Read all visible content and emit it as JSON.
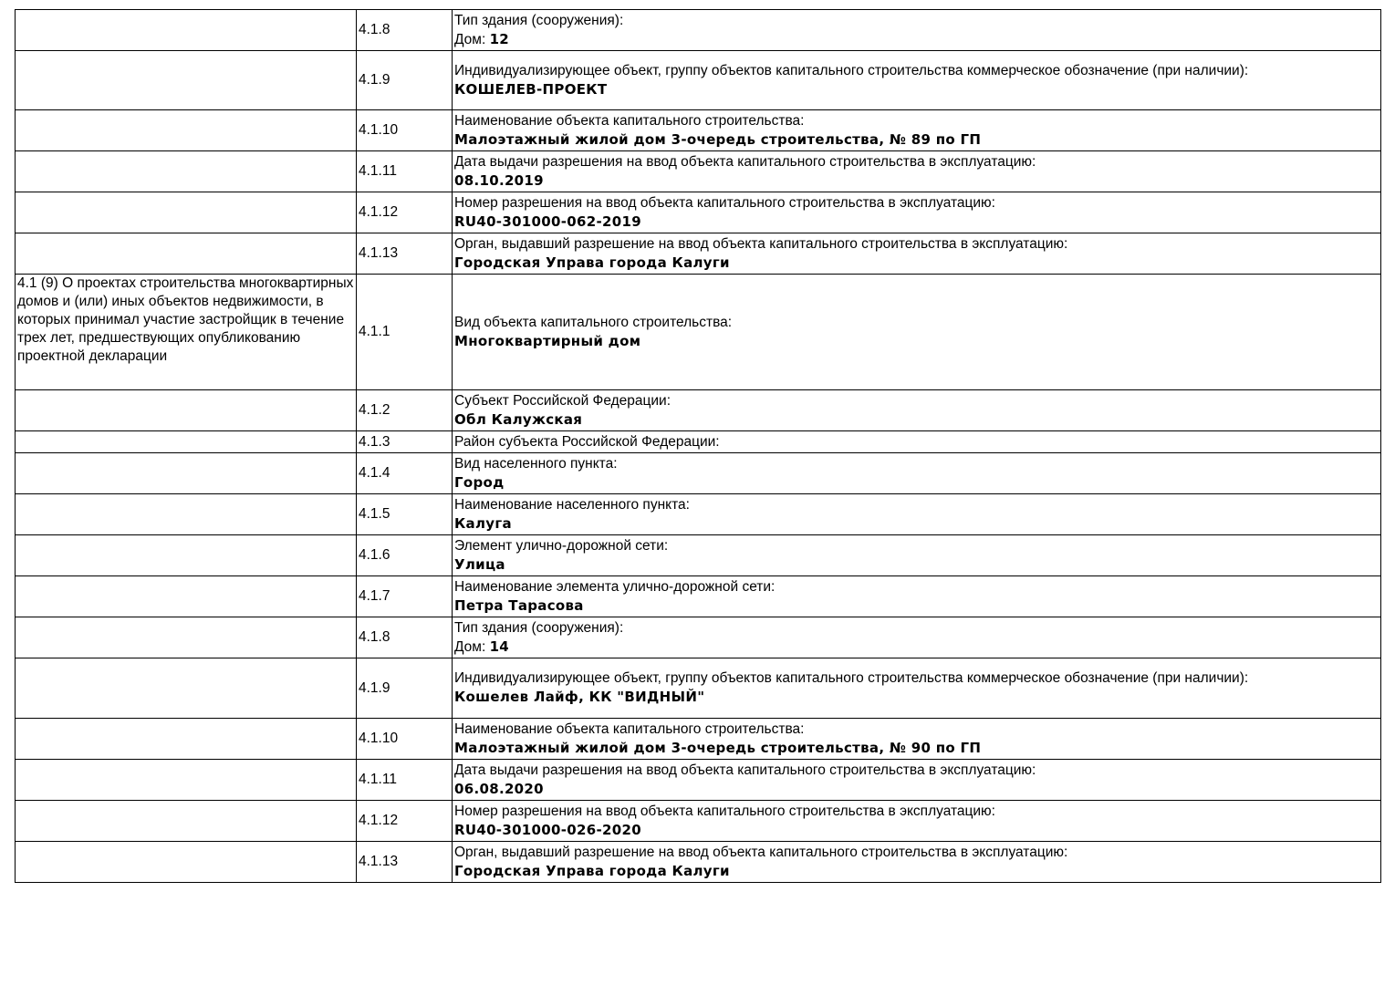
{
  "rows": [
    {
      "section": "",
      "num": "4.1.8",
      "label": "Тип здания (сооружения):",
      "value_prefix": "Дом: ",
      "value": "12"
    },
    {
      "section": "",
      "num": "4.1.9",
      "label": "Индивидуализирующее объект, группу объектов капитального строительства коммерческое обозначение (при наличии):",
      "value_prefix": "",
      "value": "КОШЕЛЕВ-ПРОЕКТ"
    },
    {
      "section": "",
      "num": "4.1.10",
      "label": "Наименование объекта капитального строительства:",
      "value_prefix": "",
      "value": "Малоэтажный жилой дом 3-очередь строительства, № 89 по ГП"
    },
    {
      "section": "",
      "num": "4.1.11",
      "label": "Дата выдачи разрешения на ввод объекта капитального строительства в эксплуатацию:",
      "value_prefix": "",
      "value": "08.10.2019"
    },
    {
      "section": "",
      "num": "4.1.12",
      "label": "Номер разрешения на ввод объекта капитального строительства в эксплуатацию:",
      "value_prefix": "",
      "value": "RU40-301000-062-2019"
    },
    {
      "section": "",
      "num": "4.1.13",
      "label": "Орган, выдавший разрешение на ввод объекта капитального строительства в эксплуатацию:",
      "value_prefix": "",
      "value": "Городская Управа города Калуги"
    },
    {
      "section": "4.1 (9) О проектах строительства многоквартирных домов и (или) иных объектов недвижимости, в которых принимал участие застройщик в течение трех лет, предшествующих опубликованию проектной декларации",
      "num": "4.1.1",
      "label": "Вид объекта капитального строительства:",
      "value_prefix": "",
      "value": "Многоквартирный дом"
    },
    {
      "section": "",
      "num": "4.1.2",
      "label": "Субъект Российской Федерации:",
      "value_prefix": "",
      "value": "Обл Калужская"
    },
    {
      "section": "",
      "num": "4.1.3",
      "label": "Район субъекта Российской Федерации:",
      "value_prefix": "",
      "value": ""
    },
    {
      "section": "",
      "num": "4.1.4",
      "label": "Вид населенного пункта:",
      "value_prefix": "",
      "value": "Город"
    },
    {
      "section": "",
      "num": "4.1.5",
      "label": "Наименование населенного пункта:",
      "value_prefix": "",
      "value": "Калуга"
    },
    {
      "section": "",
      "num": "4.1.6",
      "label": "Элемент улично-дорожной сети:",
      "value_prefix": "",
      "value": "Улица"
    },
    {
      "section": "",
      "num": "4.1.7",
      "label": "Наименование элемента улично-дорожной сети:",
      "value_prefix": "",
      "value": "Петра Тарасова"
    },
    {
      "section": "",
      "num": "4.1.8",
      "label": "Тип здания (сооружения):",
      "value_prefix": "Дом: ",
      "value": "14"
    },
    {
      "section": "",
      "num": "4.1.9",
      "label": "Индивидуализирующее объект, группу объектов капитального строительства коммерческое обозначение (при наличии):",
      "value_prefix": "",
      "value": "Кошелев Лайф, КК \"ВИДНЫЙ\""
    },
    {
      "section": "",
      "num": "4.1.10",
      "label": "Наименование объекта капитального строительства:",
      "value_prefix": "",
      "value": "Малоэтажный жилой дом 3-очередь строительства, № 90 по ГП"
    },
    {
      "section": "",
      "num": "4.1.11",
      "label": "Дата выдачи разрешения на ввод объекта капитального строительства в эксплуатацию:",
      "value_prefix": "",
      "value": "06.08.2020"
    },
    {
      "section": "",
      "num": "4.1.12",
      "label": "Номер разрешения на ввод объекта капитального строительства в эксплуатацию:",
      "value_prefix": "",
      "value": "RU40-301000-026-2020"
    },
    {
      "section": "",
      "num": "4.1.13",
      "label": "Орган, выдавший разрешение на ввод объекта капитального строительства в эксплуатацию:",
      "value_prefix": "",
      "value": "Городская Управа города Калуги"
    }
  ]
}
